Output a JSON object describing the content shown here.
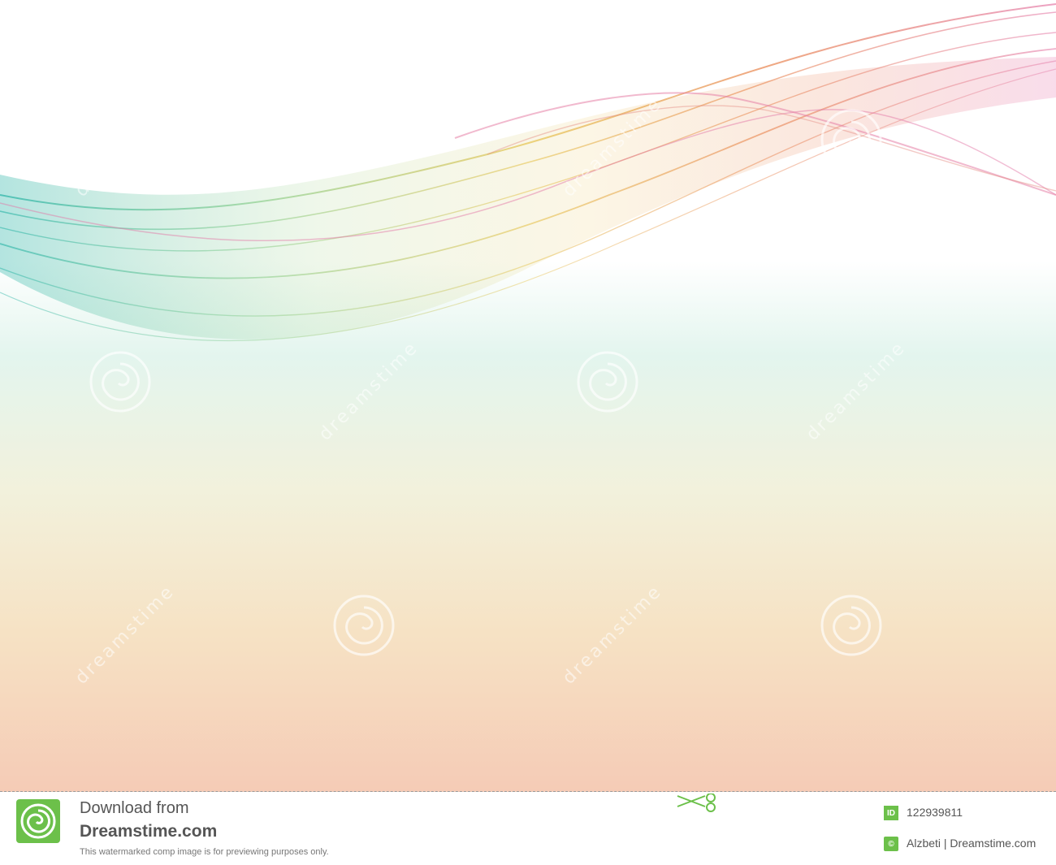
{
  "image": {
    "description_colors": {
      "background_top": "#ffffff",
      "background_mid": "#e4f5ee",
      "background_low": "#f7ecd2",
      "background_bottom": "#f5cdb8",
      "wave_teal": "#2fb7a4",
      "wave_yellow": "#e6c24a",
      "wave_orange": "#e8824a",
      "wave_pink": "#e67aa6"
    },
    "watermark_word": "dreamstime"
  },
  "footer": {
    "download_line1": "Download from",
    "download_line2": "Dreamstime.com",
    "note": "This watermarked comp image is for previewing purposes only.",
    "id_badge": "ID",
    "id_value": "122939811",
    "author_badge": "©",
    "author_value": "Alzbeti | Dreamstime.com",
    "brand_color": "#6cc04a"
  }
}
